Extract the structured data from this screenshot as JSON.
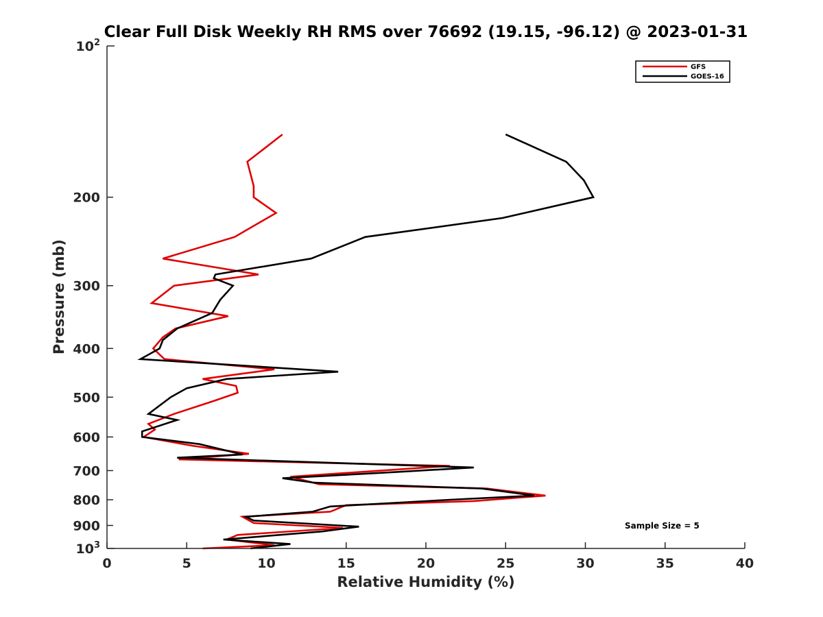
{
  "chart_data": {
    "type": "line",
    "title": "Clear Full Disk Weekly RH RMS over 76692 (19.15, -96.12) @ 2023-01-31",
    "xlabel": "Relative Humidity (%)",
    "ylabel": "Pressure (mb)",
    "xlim": [
      0,
      40
    ],
    "ylim": [
      100,
      1000
    ],
    "yscale": "log",
    "yreversed": true,
    "x_ticks": [
      0,
      5,
      10,
      15,
      20,
      25,
      30,
      35,
      40
    ],
    "x_tick_labels": [
      "0",
      "5",
      "10",
      "15",
      "20",
      "25",
      "30",
      "35",
      "40"
    ],
    "y_ticks": [
      200,
      300,
      400,
      500,
      600,
      700,
      800,
      900
    ],
    "y_tick_labels": [
      "200",
      "300",
      "400",
      "500",
      "600",
      "700",
      "800",
      "900"
    ],
    "y_decade_labels": [
      {
        "value": 100,
        "base": "10",
        "exp": "2"
      },
      {
        "value": 1000,
        "base": "10",
        "exp": "3"
      }
    ],
    "legend": {
      "position": "top-right",
      "entries": [
        "GFS",
        "GOES-16"
      ]
    },
    "annotation": "Sample Size = 5",
    "series": [
      {
        "name": "GFS",
        "color": "#e00000",
        "points": [
          [
            11.0,
            150
          ],
          [
            8.8,
            170
          ],
          [
            9.2,
            190
          ],
          [
            9.2,
            200
          ],
          [
            10.6,
            215
          ],
          [
            8.0,
            240
          ],
          [
            3.5,
            265
          ],
          [
            9.5,
            285
          ],
          [
            4.2,
            300
          ],
          [
            2.8,
            325
          ],
          [
            7.6,
            345
          ],
          [
            4.3,
            365
          ],
          [
            3.5,
            380
          ],
          [
            2.9,
            400
          ],
          [
            3.6,
            420
          ],
          [
            10.5,
            440
          ],
          [
            6.0,
            460
          ],
          [
            8.1,
            475
          ],
          [
            8.2,
            490
          ],
          [
            6.6,
            510
          ],
          [
            4.2,
            540
          ],
          [
            2.6,
            565
          ],
          [
            3.0,
            580
          ],
          [
            2.3,
            600
          ],
          [
            5.4,
            625
          ],
          [
            8.9,
            648
          ],
          [
            4.5,
            665
          ],
          [
            21.5,
            685
          ],
          [
            11.5,
            720
          ],
          [
            13.3,
            745
          ],
          [
            23.8,
            760
          ],
          [
            27.5,
            785
          ],
          [
            23.0,
            805
          ],
          [
            15.0,
            820
          ],
          [
            14.0,
            845
          ],
          [
            8.5,
            865
          ],
          [
            9.2,
            890
          ],
          [
            14.8,
            910
          ],
          [
            8.2,
            940
          ],
          [
            7.5,
            960
          ],
          [
            10.5,
            985
          ],
          [
            6.0,
            1000
          ]
        ]
      },
      {
        "name": "GOES-16",
        "color": "#000000",
        "points": [
          [
            25.0,
            150
          ],
          [
            28.8,
            170
          ],
          [
            29.9,
            185
          ],
          [
            30.5,
            200
          ],
          [
            24.8,
            220
          ],
          [
            16.2,
            240
          ],
          [
            12.8,
            265
          ],
          [
            6.8,
            285
          ],
          [
            6.7,
            290
          ],
          [
            7.9,
            300
          ],
          [
            7.1,
            320
          ],
          [
            6.6,
            340
          ],
          [
            4.4,
            365
          ],
          [
            3.5,
            385
          ],
          [
            3.3,
            400
          ],
          [
            2.1,
            420
          ],
          [
            14.5,
            445
          ],
          [
            7.5,
            460
          ],
          [
            5.0,
            480
          ],
          [
            4.0,
            500
          ],
          [
            2.6,
            540
          ],
          [
            4.4,
            555
          ],
          [
            2.2,
            585
          ],
          [
            2.2,
            600
          ],
          [
            5.8,
            620
          ],
          [
            8.5,
            650
          ],
          [
            4.4,
            660
          ],
          [
            23.0,
            690
          ],
          [
            18.0,
            705
          ],
          [
            11.0,
            725
          ],
          [
            13.0,
            740
          ],
          [
            23.5,
            760
          ],
          [
            26.8,
            785
          ],
          [
            21.5,
            800
          ],
          [
            14.0,
            825
          ],
          [
            12.9,
            845
          ],
          [
            8.7,
            865
          ],
          [
            9.2,
            880
          ],
          [
            15.8,
            905
          ],
          [
            13.5,
            925
          ],
          [
            7.3,
            960
          ],
          [
            11.5,
            980
          ],
          [
            9.0,
            1000
          ]
        ]
      }
    ]
  }
}
